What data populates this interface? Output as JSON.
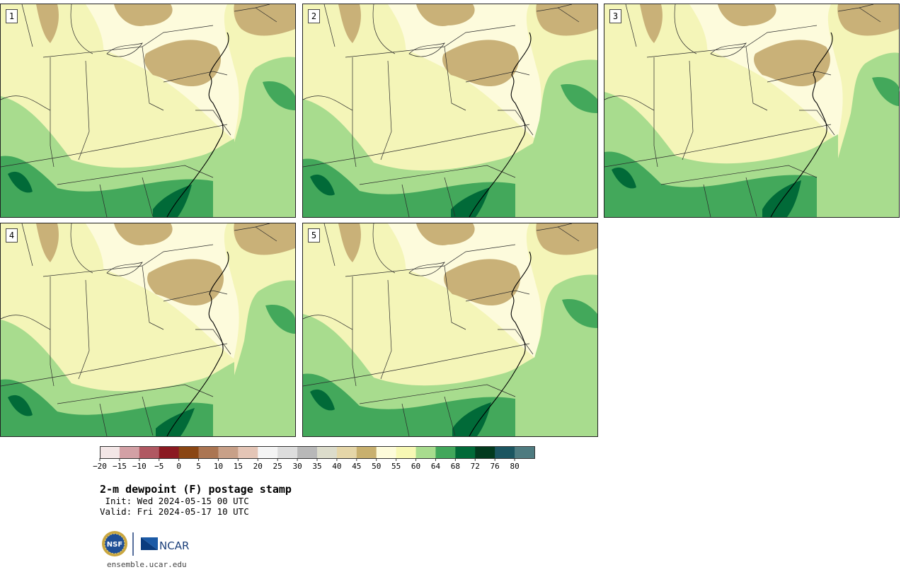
{
  "panels": [
    {
      "number": "1",
      "variant": 0
    },
    {
      "number": "2",
      "variant": 1
    },
    {
      "number": "3",
      "variant": 2
    },
    {
      "number": "4",
      "variant": 3
    },
    {
      "number": "5",
      "variant": 4
    }
  ],
  "colorbar": {
    "tick_labels": [
      "−20",
      "−15",
      "−10",
      "−5",
      "0",
      "5",
      "10",
      "15",
      "20",
      "25",
      "30",
      "35",
      "40",
      "45",
      "50",
      "55",
      "60",
      "64",
      "68",
      "72",
      "76",
      "80"
    ],
    "colors": [
      "#f3e6e6",
      "#d3a0a5",
      "#b05862",
      "#8b1a22",
      "#8a4614",
      "#ab7552",
      "#c8a088",
      "#e4c5b6",
      "#f4f4f4",
      "#dddddd",
      "#b8b8b8",
      "#dcdccb",
      "#e5d6a8",
      "#c8b06e",
      "#fdfbda",
      "#f7f8b4",
      "#a8dc8e",
      "#42a75b",
      "#016a38",
      "#023a1e",
      "#1b5560",
      "#4e7b80"
    ]
  },
  "title": "2-m dewpoint (F) postage stamp",
  "init_line": " Init: Wed 2024-05-15 00 UTC",
  "valid_line": "Valid: Fri 2024-05-17 10 UTC",
  "logo": {
    "nsf": "NSF",
    "ncar": "NCAR"
  },
  "url": "ensemble.ucar.edu",
  "map_colors": {
    "pale": "#fdfbdc",
    "light_yellow": "#f4f5b8",
    "tan": "#c9b178",
    "light_green": "#a8dc8e",
    "mid_green": "#43a85b",
    "dark_green": "#016a38",
    "lines": "#2a2a2a"
  }
}
